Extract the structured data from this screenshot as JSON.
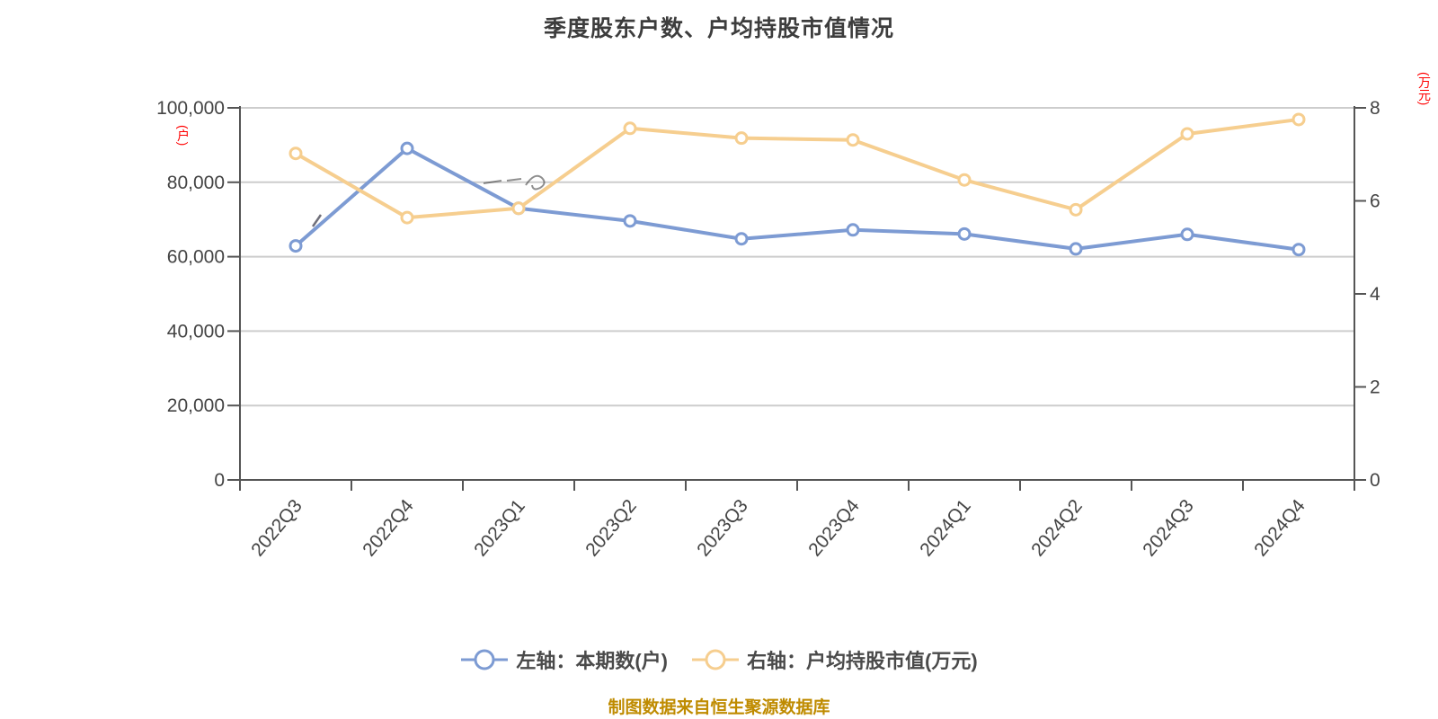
{
  "title": "季度股东户数、户均持股市值情况",
  "source_note": "制图数据来自恒生聚源数据库",
  "legend": {
    "items": [
      {
        "label": "左轴：本期数(户)",
        "color": "#7d9bd3"
      },
      {
        "label": "右轴：户均持股市值(万元)",
        "color": "#f6ce8f"
      }
    ]
  },
  "colors": {
    "series_blue": "#7d9bd3",
    "series_yellow": "#f6ce8f",
    "marker_fill": "#ffffff",
    "grid": "#cdcdcd",
    "axis": "#555555",
    "tick_text": "#444444",
    "title_text": "#3d3d3d",
    "unit_text": "#ff0000",
    "source_text": "#bf8b00"
  },
  "chart_data": {
    "type": "line",
    "categories": [
      "2022Q3",
      "2022Q4",
      "2023Q1",
      "2023Q2",
      "2023Q3",
      "2023Q4",
      "2024Q1",
      "2024Q2",
      "2024Q3",
      "2024Q4"
    ],
    "series": [
      {
        "name": "左轴：本期数(户)",
        "axis": "left",
        "color": "#7d9bd3",
        "values": [
          62900,
          89100,
          73000,
          69600,
          64800,
          67200,
          66100,
          62100,
          66000,
          61900
        ]
      },
      {
        "name": "右轴：户均持股市值(万元)",
        "axis": "right",
        "color": "#f6ce8f",
        "values": [
          7.02,
          5.64,
          5.84,
          7.56,
          7.35,
          7.31,
          6.45,
          5.81,
          7.44,
          7.75
        ]
      }
    ],
    "left_axis": {
      "unit": "(户)",
      "min": 0,
      "max": 100000,
      "tick_step": 20000,
      "tick_labels": [
        "0",
        "20,000",
        "40,000",
        "60,000",
        "80,000",
        "100,000"
      ]
    },
    "right_axis": {
      "unit": "(万元)",
      "min": 0,
      "max": 8,
      "tick_step": 2,
      "tick_labels": [
        "0",
        "2",
        "4",
        "6",
        "8"
      ]
    },
    "grid": true,
    "legend_position": "bottom",
    "x_label_rotation": -50
  }
}
